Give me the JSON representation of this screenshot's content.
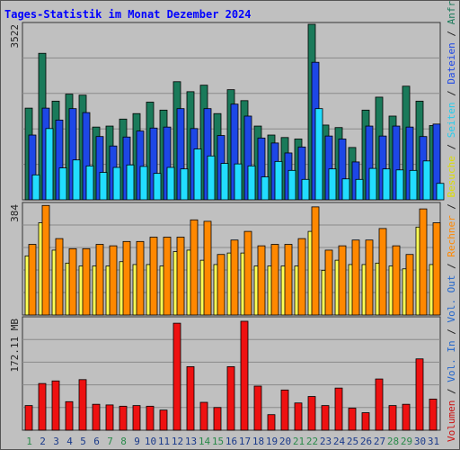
{
  "title": "Tages-Statistik im Monat Dezember 2024",
  "colors": {
    "background": "#c0c0c0",
    "title": "#0000ff",
    "grid": "#8a8a8a",
    "anfragen": "#1a7a5a",
    "dateien": "#1d47e6",
    "seiten": "#22ddff",
    "besuche": "#ffff55",
    "rechner": "#ff8800",
    "volumen": "#ee1111",
    "weekday_label": "#1a3a8a",
    "weekend_label": "#2a8a4a"
  },
  "right_legend": [
    {
      "text": "Volumen",
      "color": "#cc1111"
    },
    {
      "text": " / ",
      "color": "#222222"
    },
    {
      "text": "Vol. In",
      "color": "#2266cc"
    },
    {
      "text": " / ",
      "color": "#222222"
    },
    {
      "text": "Vol. Out",
      "color": "#2266cc"
    },
    {
      "text": " / ",
      "color": "#222222"
    },
    {
      "text": "Rechner",
      "color": "#ff8800"
    },
    {
      "text": " / ",
      "color": "#222222"
    },
    {
      "text": "Besuche",
      "color": "#dddd00"
    },
    {
      "text": " / ",
      "color": "#222222"
    },
    {
      "text": "Seiten",
      "color": "#22ccee"
    },
    {
      "text": " / ",
      "color": "#222222"
    },
    {
      "text": "Dateien",
      "color": "#1d47e6"
    },
    {
      "text": " / ",
      "color": "#222222"
    },
    {
      "text": "Anfragen",
      "color": "#1a7a5a"
    }
  ],
  "chart_data": [
    {
      "type": "bar",
      "ylabel": "3522",
      "ylim": [
        0,
        3522
      ],
      "grid": true,
      "categories": [
        "1",
        "2",
        "3",
        "4",
        "5",
        "6",
        "7",
        "8",
        "9",
        "10",
        "11",
        "12",
        "13",
        "14",
        "15",
        "16",
        "17",
        "18",
        "19",
        "20",
        "21",
        "22",
        "23",
        "24",
        "25",
        "26",
        "27",
        "28",
        "29",
        "30",
        "31"
      ],
      "series": [
        {
          "key": "anfragen",
          "values": [
            1840,
            2940,
            1980,
            2120,
            2100,
            1460,
            1480,
            1620,
            1730,
            1960,
            1800,
            2370,
            2170,
            2300,
            1730,
            2210,
            1990,
            1480,
            1300,
            1250,
            1220,
            3522,
            1500,
            1450,
            1050,
            1800,
            2060,
            1680,
            2280,
            1980,
            1490
          ]
        },
        {
          "key": "dateien",
          "values": [
            1300,
            1840,
            1600,
            1830,
            1750,
            1270,
            1080,
            1260,
            1380,
            1440,
            1460,
            1830,
            1430,
            1830,
            1290,
            1920,
            1680,
            1240,
            1140,
            940,
            1060,
            2760,
            1280,
            1220,
            760,
            1480,
            1280,
            1480,
            1460,
            1270,
            1520
          ]
        },
        {
          "key": "seiten",
          "values": [
            500,
            1430,
            640,
            800,
            680,
            550,
            650,
            700,
            670,
            530,
            650,
            620,
            1020,
            880,
            730,
            720,
            680,
            460,
            770,
            590,
            410,
            1830,
            620,
            420,
            410,
            630,
            620,
            600,
            590,
            780,
            330
          ]
        }
      ]
    },
    {
      "type": "bar",
      "ylabel": "384",
      "ylim": [
        0,
        384
      ],
      "grid": true,
      "categories": [
        "1",
        "2",
        "3",
        "4",
        "5",
        "6",
        "7",
        "8",
        "9",
        "10",
        "11",
        "12",
        "13",
        "14",
        "15",
        "16",
        "17",
        "18",
        "19",
        "20",
        "21",
        "22",
        "23",
        "24",
        "25",
        "26",
        "27",
        "28",
        "29",
        "30",
        "31"
      ],
      "series": [
        {
          "key": "besuche",
          "values": [
            205,
            320,
            225,
            180,
            170,
            170,
            170,
            185,
            175,
            175,
            170,
            220,
            225,
            190,
            175,
            215,
            215,
            170,
            170,
            170,
            170,
            290,
            155,
            190,
            175,
            175,
            180,
            170,
            160,
            305,
            175
          ]
        },
        {
          "key": "rechner",
          "values": [
            245,
            380,
            265,
            230,
            230,
            245,
            240,
            255,
            255,
            270,
            270,
            270,
            330,
            325,
            210,
            260,
            290,
            240,
            245,
            245,
            265,
            375,
            225,
            240,
            260,
            260,
            300,
            240,
            210,
            368,
            320
          ]
        }
      ]
    },
    {
      "type": "bar",
      "ylabel": "172.11 MB",
      "ylim": [
        0,
        172.11
      ],
      "grid": true,
      "categories": [
        "1",
        "2",
        "3",
        "4",
        "5",
        "6",
        "7",
        "8",
        "9",
        "10",
        "11",
        "12",
        "13",
        "14",
        "15",
        "16",
        "17",
        "18",
        "19",
        "20",
        "21",
        "22",
        "23",
        "24",
        "25",
        "26",
        "27",
        "28",
        "29",
        "30",
        "31"
      ],
      "series": [
        {
          "key": "volumen",
          "values": [
            38,
            72,
            76,
            44,
            78,
            40,
            39,
            37,
            38,
            37,
            31,
            165,
            98,
            43,
            35,
            98,
            168,
            68,
            24,
            62,
            42,
            52,
            38,
            65,
            34,
            27,
            79,
            38,
            40,
            110,
            48
          ]
        }
      ]
    }
  ],
  "x_labels": [
    {
      "text": "1",
      "weekend": true
    },
    {
      "text": "2",
      "weekend": false
    },
    {
      "text": "3",
      "weekend": false
    },
    {
      "text": "4",
      "weekend": false
    },
    {
      "text": "5",
      "weekend": false
    },
    {
      "text": "6",
      "weekend": false
    },
    {
      "text": "7",
      "weekend": true
    },
    {
      "text": "8",
      "weekend": true
    },
    {
      "text": "9",
      "weekend": false
    },
    {
      "text": "10",
      "weekend": false
    },
    {
      "text": "11",
      "weekend": false
    },
    {
      "text": "12",
      "weekend": false
    },
    {
      "text": "13",
      "weekend": false
    },
    {
      "text": "14",
      "weekend": true
    },
    {
      "text": "15",
      "weekend": true
    },
    {
      "text": "16",
      "weekend": false
    },
    {
      "text": "17",
      "weekend": false
    },
    {
      "text": "18",
      "weekend": false
    },
    {
      "text": "19",
      "weekend": false
    },
    {
      "text": "20",
      "weekend": false
    },
    {
      "text": "21",
      "weekend": true
    },
    {
      "text": "22",
      "weekend": true
    },
    {
      "text": "23",
      "weekend": false
    },
    {
      "text": "24",
      "weekend": false
    },
    {
      "text": "25",
      "weekend": false
    },
    {
      "text": "26",
      "weekend": false
    },
    {
      "text": "27",
      "weekend": false
    },
    {
      "text": "28",
      "weekend": true
    },
    {
      "text": "29",
      "weekend": true
    },
    {
      "text": "30",
      "weekend": false
    },
    {
      "text": "31",
      "weekend": false
    }
  ]
}
